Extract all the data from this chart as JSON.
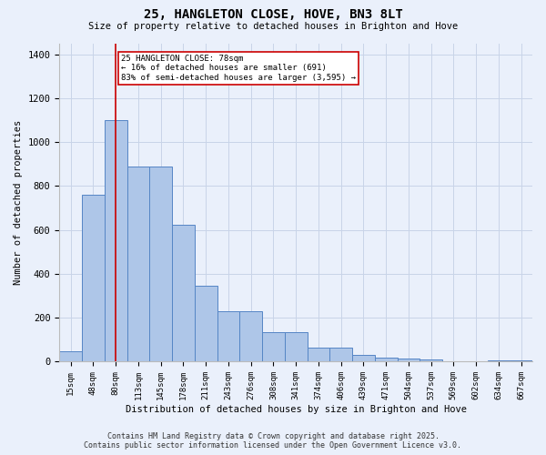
{
  "title": "25, HANGLETON CLOSE, HOVE, BN3 8LT",
  "subtitle": "Size of property relative to detached houses in Brighton and Hove",
  "xlabel": "Distribution of detached houses by size in Brighton and Hove",
  "ylabel": "Number of detached properties",
  "categories": [
    "15sqm",
    "48sqm",
    "80sqm",
    "113sqm",
    "145sqm",
    "178sqm",
    "211sqm",
    "243sqm",
    "276sqm",
    "308sqm",
    "341sqm",
    "374sqm",
    "406sqm",
    "439sqm",
    "471sqm",
    "504sqm",
    "537sqm",
    "569sqm",
    "602sqm",
    "634sqm",
    "667sqm"
  ],
  "values": [
    48,
    760,
    1100,
    890,
    890,
    625,
    345,
    228,
    228,
    135,
    135,
    65,
    65,
    30,
    20,
    15,
    12,
    3,
    3,
    8,
    8
  ],
  "bar_color": "#aec6e8",
  "bar_edge_color": "#5585c5",
  "vline_x": 2.0,
  "vline_color": "#cc0000",
  "annotation_text": "25 HANGLETON CLOSE: 78sqm\n← 16% of detached houses are smaller (691)\n83% of semi-detached houses are larger (3,595) →",
  "annotation_box_color": "white",
  "annotation_box_edge": "#cc0000",
  "ylim": [
    0,
    1450
  ],
  "yticks": [
    0,
    200,
    400,
    600,
    800,
    1000,
    1200,
    1400
  ],
  "footer1": "Contains HM Land Registry data © Crown copyright and database right 2025.",
  "footer2": "Contains public sector information licensed under the Open Government Licence v3.0.",
  "bg_color": "#eaf0fb",
  "grid_color": "#c8d4e8"
}
